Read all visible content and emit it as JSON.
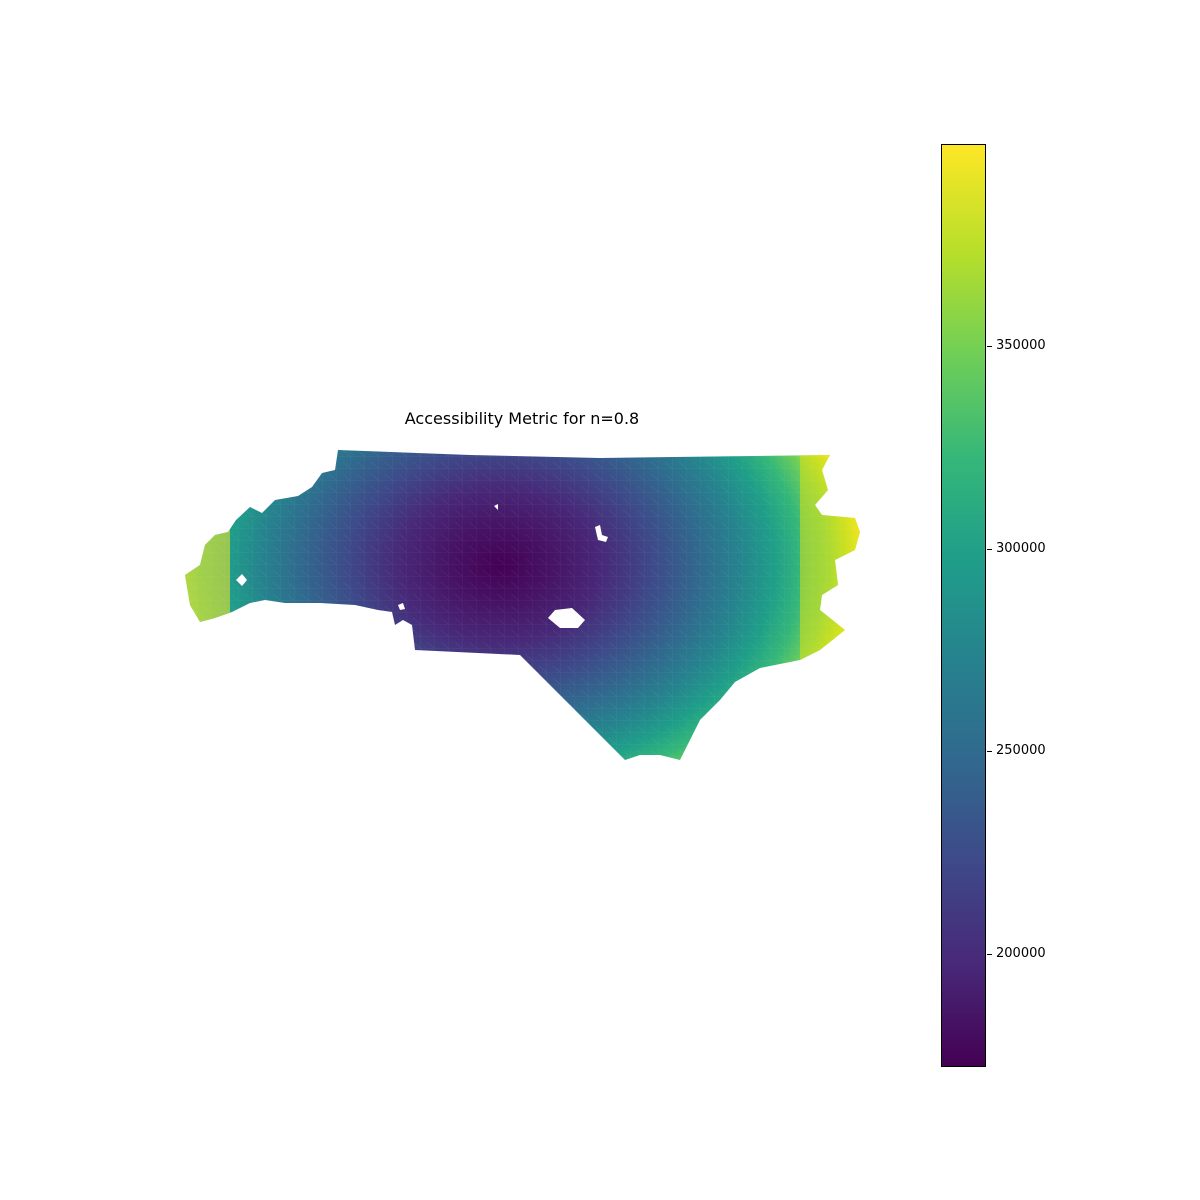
{
  "figure": {
    "title": "Accessibility Metric for n=0.8"
  },
  "colormap": {
    "name": "viridis",
    "stops": [
      "#440154",
      "#482878",
      "#3e4989",
      "#31688e",
      "#26828e",
      "#1f9e89",
      "#35b779",
      "#6ece58",
      "#b5de2b",
      "#fde725"
    ]
  },
  "colorbar": {
    "min": 172000,
    "max": 400000,
    "ticks": [
      {
        "value": 200000,
        "label": "200000"
      },
      {
        "value": 250000,
        "label": "250000"
      },
      {
        "value": 300000,
        "label": "300000"
      },
      {
        "value": 350000,
        "label": "350000"
      }
    ]
  },
  "map": {
    "region": "North Carolina census tracts",
    "low_value_center": "central Piedmont",
    "high_value_regions": [
      "far west mountains",
      "northeast coast / Outer Banks"
    ]
  }
}
